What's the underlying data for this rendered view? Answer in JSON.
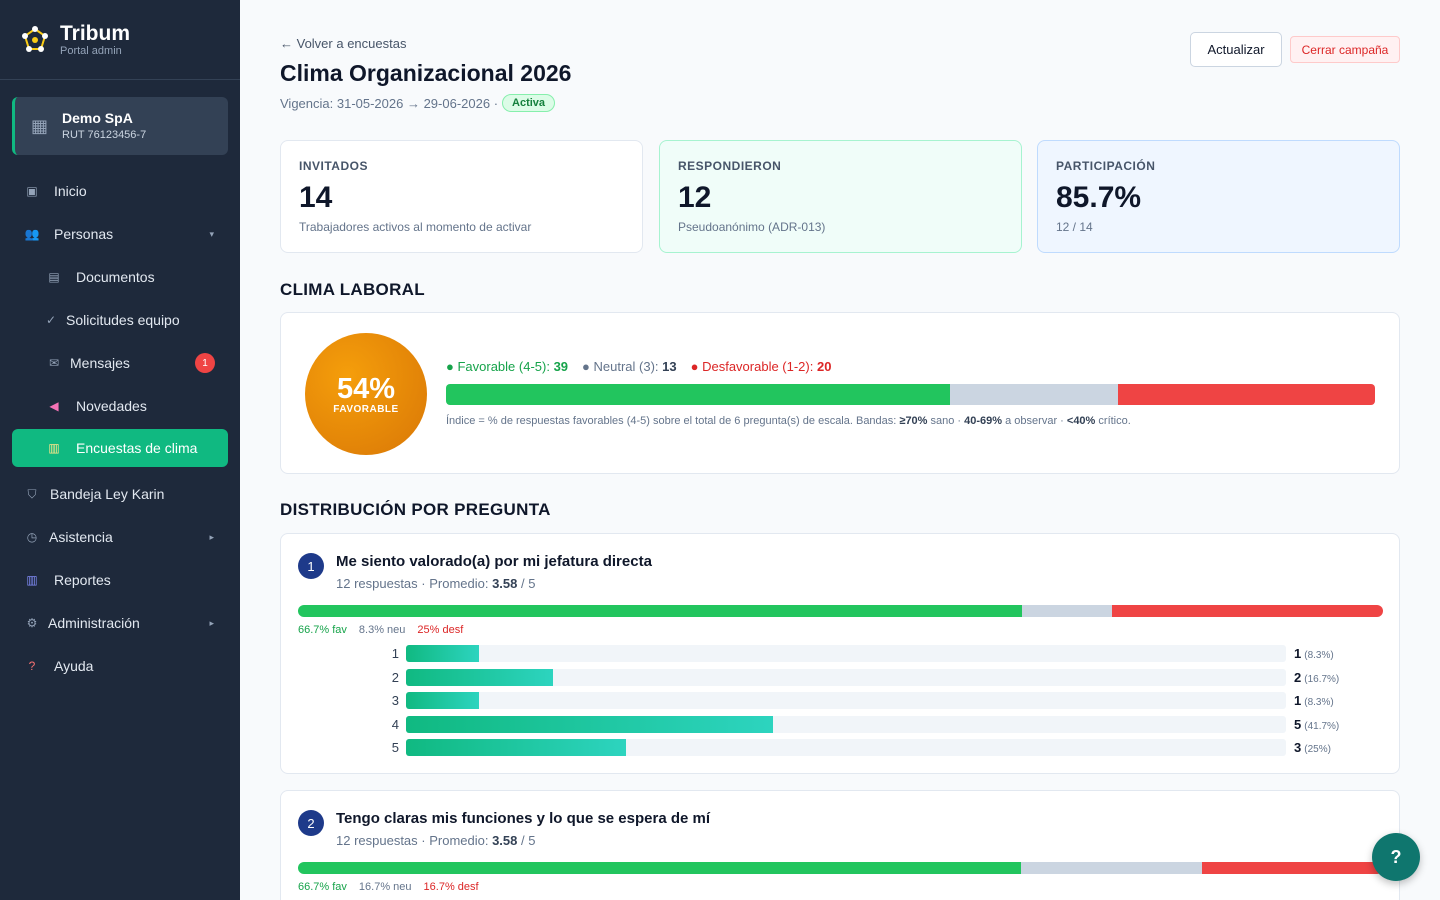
{
  "brand": {
    "name": "Tribum",
    "subtitle": "Portal admin"
  },
  "company": {
    "name": "Demo SpA",
    "rut": "RUT 76123456-7"
  },
  "nav": [
    {
      "label": "Inicio",
      "icon": "square-icon"
    },
    {
      "label": "Personas",
      "icon": "people-icon",
      "caret": "▾"
    },
    {
      "label": "Documentos",
      "icon": "document-icon"
    },
    {
      "label": "Solicitudes equipo",
      "icon": "check-icon"
    },
    {
      "label": "Mensajes",
      "icon": "mail-icon",
      "badge": "1"
    },
    {
      "label": "Novedades",
      "icon": "megaphone-icon"
    },
    {
      "label": "Encuestas de clima",
      "icon": "chart-icon"
    },
    {
      "label": "Bandeja Ley Karin",
      "icon": "shield-icon"
    },
    {
      "label": "Asistencia",
      "icon": "clock-icon",
      "caret": "▸"
    },
    {
      "label": "Reportes",
      "icon": "bar-chart-icon"
    },
    {
      "label": "Administración",
      "icon": "gear-icon",
      "caret": "▸"
    },
    {
      "label": "Ayuda",
      "icon": "question-icon"
    }
  ],
  "header": {
    "back_label": "← Volver a encuestas",
    "title": "Clima Organizacional 2026",
    "vigencia": "Vigencia: 31-05-2026 → 29-06-2026 ·",
    "status": "Activa",
    "refresh_label": "Actualizar",
    "close_label": "Cerrar campaña"
  },
  "stats": [
    {
      "label": "INVITADOS",
      "value": "14",
      "sub": "Trabajadores activos al momento de activar"
    },
    {
      "label": "RESPONDIERON",
      "value": "12",
      "sub": "Pseudoanónimo (ADR-013)"
    },
    {
      "label": "PARTICIPACIÓN",
      "value": "85.7%",
      "sub": "12 / 14"
    }
  ],
  "clima": {
    "section_title": "CLIMA LABORAL",
    "score": "54%",
    "score_label": "FAVORABLE",
    "fav_label": "● Favorable (4-5):",
    "fav_count": "39",
    "neu_label": "● Neutral (3):",
    "neu_count": "13",
    "des_label": "● Desfavorable (1-2):",
    "des_count": "20",
    "fav_pct": 54.2,
    "neu_pct": 18.1,
    "des_pct": 27.7,
    "note_a": "Índice = % de respuestas favorables (4-5) sobre el total de 6 pregunta(s) de escala. Bandas: ",
    "note_b1": "≥70%",
    "note_c": " sano · ",
    "note_b2": "40-69%",
    "note_d": " a observar · ",
    "note_b3": "<40%",
    "note_e": " crítico."
  },
  "distribution_title": "DISTRIBUCIÓN POR PREGUNTA",
  "colors": {
    "favorable": "#22c55e",
    "neutral": "#cbd5e1",
    "desfavorable": "#ef4444",
    "accent": "#10b981"
  },
  "questions": [
    {
      "num": "1",
      "title": "Me siento valorado(a) por mi jefatura directa",
      "meta_a": "12 respuestas · Promedio: ",
      "avg": "3.58",
      "meta_b": " / 5",
      "fav_pct": 66.7,
      "neu_pct": 8.3,
      "des_pct": 25,
      "fav_label": "66.7% fav",
      "neu_label": "8.3% neu",
      "des_label": "25% desf",
      "rows": [
        {
          "label": "1",
          "count": "1",
          "pct_label": "(8.3%)",
          "pct": 8.3
        },
        {
          "label": "2",
          "count": "2",
          "pct_label": "(16.7%)",
          "pct": 16.7
        },
        {
          "label": "3",
          "count": "1",
          "pct_label": "(8.3%)",
          "pct": 8.3
        },
        {
          "label": "4",
          "count": "5",
          "pct_label": "(41.7%)",
          "pct": 41.7
        },
        {
          "label": "5",
          "count": "3",
          "pct_label": "(25%)",
          "pct": 25
        }
      ]
    },
    {
      "num": "2",
      "title": "Tengo claras mis funciones y lo que se espera de mí",
      "meta_a": "12 respuestas · Promedio: ",
      "avg": "3.58",
      "meta_b": " / 5",
      "fav_pct": 66.7,
      "neu_pct": 16.7,
      "des_pct": 16.7,
      "fav_label": "66.7% fav",
      "neu_label": "16.7% neu",
      "des_label": "16.7% desf",
      "rows": []
    }
  ],
  "help_label": "?"
}
